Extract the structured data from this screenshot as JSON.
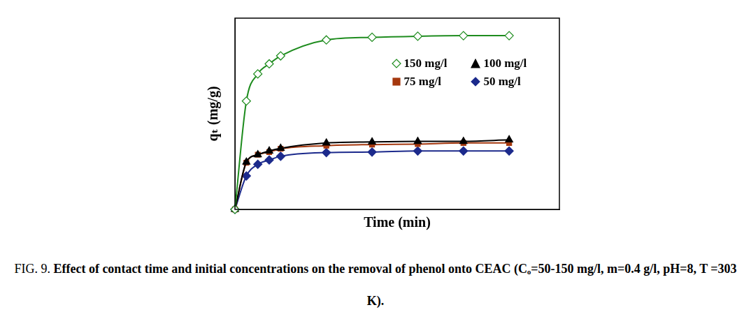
{
  "chart_data": {
    "type": "line",
    "x_label": "Time (min)",
    "y_label": "qₜ (mg/g)",
    "caption": {
      "label": "FIG. 9.",
      "text": "Effect of contact time and initial concentrations on the removal of phenol onto CEAC (Cₒ=50-150 mg/l, m=0.4 g/l, pH=8, T =303 K)."
    },
    "x": [
      0,
      5,
      10,
      15,
      20,
      40,
      60,
      80,
      100,
      120
    ],
    "xlim": [
      0,
      142
    ],
    "ylim": [
      0,
      360
    ],
    "tick_labels": false,
    "grid": false,
    "legend": "upper right",
    "series": [
      {
        "name": "150 mg/l",
        "color": "#1e8c1e",
        "marker": "open_diamond",
        "values": [
          0,
          204,
          255,
          274,
          289,
          319,
          324,
          326,
          327,
          327
        ]
      },
      {
        "name": "100 mg/l",
        "color": "#000000",
        "marker": "triangle",
        "values": [
          0,
          89,
          103,
          110,
          115,
          125,
          127,
          128,
          128,
          131
        ]
      },
      {
        "name": "75 mg/l",
        "color": "#a5380e",
        "marker": "square",
        "values": [
          0,
          88,
          103,
          108,
          114,
          120,
          122,
          123,
          125,
          125
        ]
      },
      {
        "name": "50 mg/l",
        "color": "#1c2a8c",
        "marker": "diamond",
        "values": [
          0,
          63,
          85,
          93,
          100,
          107,
          108,
          110,
          110,
          110
        ]
      }
    ]
  }
}
